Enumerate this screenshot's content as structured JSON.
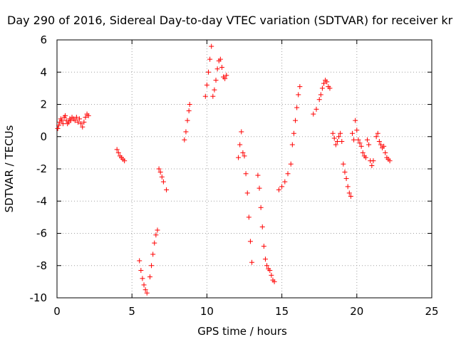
{
  "chart_data": {
    "type": "scatter",
    "title": "Day 290 of 2016, Sidereal Day-to-day VTEC variation (SDTVAR) for receiver kr",
    "xlabel": "GPS time / hours",
    "ylabel": "SDTVAR / TECUs",
    "xlim": [
      0,
      25
    ],
    "ylim": [
      -10,
      6
    ],
    "xticks": [
      0,
      5,
      10,
      15,
      20,
      25
    ],
    "yticks": [
      -10,
      -8,
      -6,
      -4,
      -2,
      0,
      2,
      4,
      6
    ],
    "x_tick_labels": [
      "0",
      "5",
      "10",
      "15",
      "20",
      "25"
    ],
    "y_tick_labels": [
      "-10",
      "-8",
      "-6",
      "-4",
      "-2",
      "0",
      "2",
      "4",
      "6"
    ],
    "grid": true,
    "legend": "none",
    "marker": "plus",
    "color": "#ff0000",
    "series": [
      {
        "points": [
          [
            0.05,
            0.5
          ],
          [
            0.12,
            0.7
          ],
          [
            0.18,
            0.9
          ],
          [
            0.25,
            1.1
          ],
          [
            0.32,
            1.0
          ],
          [
            0.4,
            0.8
          ],
          [
            0.48,
            1.2
          ],
          [
            0.55,
            1.3
          ],
          [
            0.62,
            1.0
          ],
          [
            0.7,
            0.8
          ],
          [
            0.78,
            0.9
          ],
          [
            0.85,
            1.1
          ],
          [
            0.92,
            1.0
          ],
          [
            1.0,
            1.2
          ],
          [
            1.1,
            1.1
          ],
          [
            1.2,
            1.0
          ],
          [
            1.3,
            1.2
          ],
          [
            1.4,
            0.9
          ],
          [
            1.5,
            1.1
          ],
          [
            1.6,
            0.8
          ],
          [
            1.7,
            0.6
          ],
          [
            1.8,
            0.9
          ],
          [
            1.9,
            1.2
          ],
          [
            2.0,
            1.4
          ],
          [
            2.1,
            1.3
          ],
          [
            4.0,
            -0.8
          ],
          [
            4.1,
            -1.0
          ],
          [
            4.2,
            -1.2
          ],
          [
            4.3,
            -1.3
          ],
          [
            4.4,
            -1.4
          ],
          [
            4.5,
            -1.5
          ],
          [
            5.5,
            -7.7
          ],
          [
            5.6,
            -8.3
          ],
          [
            5.7,
            -8.8
          ],
          [
            5.8,
            -9.2
          ],
          [
            5.9,
            -9.5
          ],
          [
            6.0,
            -9.7
          ],
          [
            6.2,
            -8.7
          ],
          [
            6.3,
            -8.0
          ],
          [
            6.4,
            -7.3
          ],
          [
            6.5,
            -6.6
          ],
          [
            6.6,
            -6.1
          ],
          [
            6.7,
            -5.8
          ],
          [
            6.8,
            -2.0
          ],
          [
            6.9,
            -2.2
          ],
          [
            7.0,
            -2.5
          ],
          [
            7.1,
            -2.8
          ],
          [
            7.3,
            -3.3
          ],
          [
            8.5,
            -0.2
          ],
          [
            8.6,
            0.3
          ],
          [
            8.7,
            1.0
          ],
          [
            8.8,
            1.6
          ],
          [
            8.85,
            2.0
          ],
          [
            9.9,
            2.5
          ],
          [
            10.0,
            3.2
          ],
          [
            10.1,
            4.0
          ],
          [
            10.2,
            4.8
          ],
          [
            10.3,
            5.6
          ],
          [
            10.4,
            2.5
          ],
          [
            10.5,
            2.9
          ],
          [
            10.6,
            3.5
          ],
          [
            10.7,
            4.2
          ],
          [
            10.8,
            4.7
          ],
          [
            10.9,
            4.8
          ],
          [
            11.0,
            4.3
          ],
          [
            11.1,
            3.7
          ],
          [
            11.2,
            3.6
          ],
          [
            11.3,
            3.8
          ],
          [
            12.1,
            -1.3
          ],
          [
            12.2,
            -0.5
          ],
          [
            12.3,
            0.3
          ],
          [
            12.4,
            -1.0
          ],
          [
            12.5,
            -1.2
          ],
          [
            12.6,
            -2.3
          ],
          [
            12.7,
            -3.5
          ],
          [
            12.8,
            -5.0
          ],
          [
            12.9,
            -6.5
          ],
          [
            13.0,
            -7.8
          ],
          [
            13.4,
            -2.4
          ],
          [
            13.5,
            -3.2
          ],
          [
            13.6,
            -4.4
          ],
          [
            13.7,
            -5.6
          ],
          [
            13.8,
            -6.8
          ],
          [
            13.9,
            -7.6
          ],
          [
            14.0,
            -8.0
          ],
          [
            14.1,
            -8.2
          ],
          [
            14.2,
            -8.3
          ],
          [
            14.3,
            -8.6
          ],
          [
            14.4,
            -8.9
          ],
          [
            14.5,
            -9.0
          ],
          [
            14.8,
            -3.3
          ],
          [
            15.0,
            -3.1
          ],
          [
            15.2,
            -2.8
          ],
          [
            15.4,
            -2.3
          ],
          [
            15.6,
            -1.7
          ],
          [
            15.7,
            -0.5
          ],
          [
            15.8,
            0.2
          ],
          [
            15.9,
            1.0
          ],
          [
            16.0,
            1.8
          ],
          [
            16.1,
            2.6
          ],
          [
            16.2,
            3.1
          ],
          [
            17.1,
            1.4
          ],
          [
            17.3,
            1.7
          ],
          [
            17.5,
            2.3
          ],
          [
            17.6,
            2.6
          ],
          [
            17.7,
            3.0
          ],
          [
            17.8,
            3.3
          ],
          [
            17.9,
            3.5
          ],
          [
            18.0,
            3.4
          ],
          [
            18.1,
            3.1
          ],
          [
            18.2,
            3.0
          ],
          [
            18.4,
            0.2
          ],
          [
            18.5,
            -0.1
          ],
          [
            18.6,
            -0.5
          ],
          [
            18.7,
            -0.3
          ],
          [
            18.8,
            0.0
          ],
          [
            18.9,
            0.2
          ],
          [
            19.0,
            -0.3
          ],
          [
            19.1,
            -1.7
          ],
          [
            19.2,
            -2.2
          ],
          [
            19.3,
            -2.6
          ],
          [
            19.4,
            -3.1
          ],
          [
            19.5,
            -3.5
          ],
          [
            19.6,
            -3.7
          ],
          [
            19.7,
            0.2
          ],
          [
            19.8,
            -0.2
          ],
          [
            19.9,
            1.0
          ],
          [
            20.0,
            0.4
          ],
          [
            20.1,
            -0.2
          ],
          [
            20.2,
            -0.4
          ],
          [
            20.3,
            -0.6
          ],
          [
            20.4,
            -1.0
          ],
          [
            20.5,
            -1.2
          ],
          [
            20.6,
            -1.3
          ],
          [
            20.7,
            -0.2
          ],
          [
            20.8,
            -0.5
          ],
          [
            20.9,
            -1.5
          ],
          [
            21.0,
            -1.8
          ],
          [
            21.1,
            -1.5
          ],
          [
            21.3,
            0.0
          ],
          [
            21.4,
            0.2
          ],
          [
            21.5,
            -0.3
          ],
          [
            21.6,
            -0.5
          ],
          [
            21.7,
            -0.7
          ],
          [
            21.8,
            -0.6
          ],
          [
            21.9,
            -1.0
          ],
          [
            22.0,
            -1.3
          ],
          [
            22.1,
            -1.4
          ],
          [
            22.2,
            -1.5
          ]
        ]
      }
    ]
  }
}
